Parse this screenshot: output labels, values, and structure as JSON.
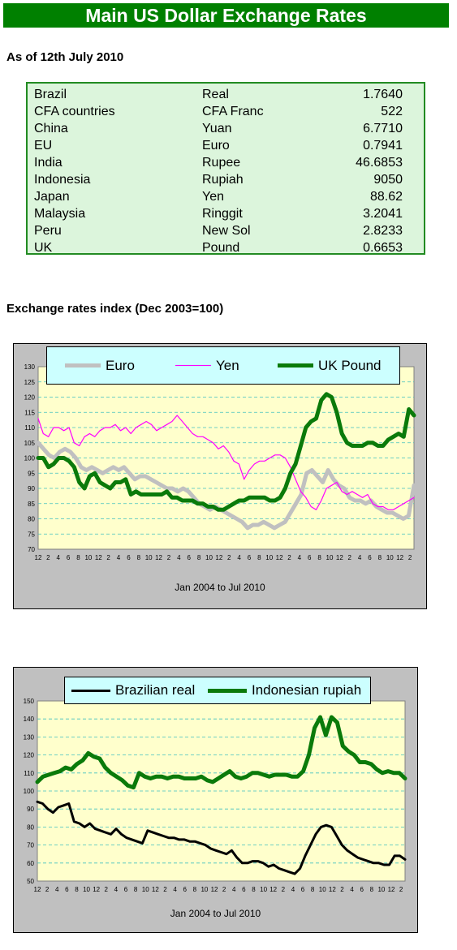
{
  "header": {
    "title": "Main US Dollar Exchange Rates",
    "as_of": "As of 12th July 2010",
    "index_heading": "Exchange rates index (Dec 2003=100)"
  },
  "rates_table": [
    {
      "country": "Brazil",
      "currency": "Real",
      "value": "1.7640"
    },
    {
      "country": "CFA countries",
      "currency": "CFA Franc",
      "value": "522"
    },
    {
      "country": "China",
      "currency": "Yuan",
      "value": "6.7710"
    },
    {
      "country": "EU",
      "currency": "Euro",
      "value": "0.7941"
    },
    {
      "country": "India",
      "currency": "Rupee",
      "value": "46.6853"
    },
    {
      "country": "Indonesia",
      "currency": "Rupiah",
      "value": "9050"
    },
    {
      "country": "Japan",
      "currency": "Yen",
      "value": "88.62"
    },
    {
      "country": "Malaysia",
      "currency": "Ringgit",
      "value": "3.2041"
    },
    {
      "country": "Peru",
      "currency": "New Sol",
      "value": "2.8233"
    },
    {
      "country": "UK",
      "currency": "Pound",
      "value": "0.6653"
    }
  ],
  "colors": {
    "banner": "#008000",
    "table_bg": "#dcf5dc",
    "plot_bg": "#ffffcc",
    "legend_bg": "#ccffff",
    "euro": "#c0c0c0",
    "yen": "#ff00ff",
    "pound": "#0a7a0a",
    "real": "#000000",
    "rupiah": "#0a7a0a"
  },
  "chart_data": [
    {
      "type": "line",
      "xlabel": "Jan 2004 to Jul 2010",
      "x_ticks": [
        "12",
        "2",
        "4",
        "6",
        "8",
        "10",
        "12",
        "2",
        "4",
        "6",
        "8",
        "10",
        "12",
        "2",
        "4",
        "6",
        "8",
        "10",
        "12",
        "2",
        "4",
        "6",
        "8",
        "10",
        "12",
        "2",
        "4",
        "6",
        "8",
        "10",
        "12",
        "2",
        "4",
        "6",
        "8",
        "10",
        "12",
        "2"
      ],
      "ylim": [
        70,
        130
      ],
      "y_ticks": [
        70,
        75,
        80,
        85,
        90,
        95,
        100,
        105,
        110,
        115,
        120,
        125,
        130
      ],
      "grid": true,
      "legend": "top",
      "series": [
        {
          "name": "Euro",
          "color": "#c0c0c0",
          "width": 5,
          "values": [
            105,
            103,
            101,
            100,
            102,
            103,
            102,
            100,
            97,
            96,
            97,
            96,
            95,
            96,
            97,
            96,
            97,
            95,
            93,
            94,
            94,
            93,
            92,
            91,
            90,
            90,
            89,
            90,
            89,
            87,
            85,
            84,
            83,
            84,
            83,
            82,
            81,
            80,
            79,
            77,
            78,
            78,
            79,
            78,
            77,
            78,
            79,
            82,
            85,
            88,
            95,
            96,
            94,
            92,
            96,
            93,
            91,
            90,
            87,
            86,
            86,
            85,
            86,
            84,
            83,
            82,
            82,
            81,
            80,
            81,
            91
          ]
        },
        {
          "name": "Yen",
          "color": "#ff00ff",
          "width": 1.2,
          "values": [
            113,
            108,
            107,
            110,
            110,
            109,
            110,
            105,
            104,
            107,
            108,
            107,
            109,
            110,
            110,
            111,
            109,
            110,
            108,
            110,
            111,
            112,
            111,
            109,
            110,
            111,
            112,
            114,
            112,
            110,
            108,
            107,
            107,
            106,
            105,
            103,
            104,
            102,
            99,
            98,
            93,
            96,
            98,
            99,
            99,
            100,
            101,
            101,
            100,
            97,
            93,
            89,
            87,
            84,
            83,
            86,
            90,
            91,
            92,
            89,
            88,
            89,
            88,
            87,
            88,
            85,
            84,
            84,
            83,
            83,
            84,
            85,
            86,
            87
          ]
        },
        {
          "name": "UK Pound",
          "color": "#0a7a0a",
          "width": 5,
          "values": [
            100,
            100,
            97,
            98,
            100,
            100,
            99,
            97,
            92,
            90,
            94,
            95,
            92,
            91,
            90,
            92,
            92,
            93,
            88,
            89,
            88,
            88,
            88,
            88,
            88,
            89,
            87,
            87,
            86,
            86,
            86,
            85,
            85,
            84,
            84,
            83,
            83,
            84,
            85,
            86,
            86,
            87,
            87,
            87,
            87,
            86,
            86,
            87,
            90,
            95,
            98,
            104,
            110,
            112,
            113,
            119,
            121,
            120,
            115,
            108,
            105,
            104,
            104,
            104,
            105,
            105,
            104,
            104,
            106,
            107,
            108,
            107,
            116,
            114
          ]
        }
      ]
    },
    {
      "type": "line",
      "xlabel": "Jan 2004 to Jul 2010",
      "x_ticks": [
        "12",
        "2",
        "4",
        "6",
        "8",
        "10",
        "12",
        "2",
        "4",
        "6",
        "8",
        "10",
        "12",
        "2",
        "4",
        "6",
        "8",
        "10",
        "12",
        "2",
        "4",
        "6",
        "8",
        "10",
        "12",
        "2",
        "4",
        "6",
        "8",
        "10",
        "12",
        "2",
        "4",
        "6",
        "8",
        "10",
        "12",
        "2"
      ],
      "ylim": [
        50,
        150
      ],
      "y_ticks": [
        50,
        60,
        70,
        80,
        90,
        100,
        110,
        120,
        130,
        140,
        150
      ],
      "grid": true,
      "legend": "top",
      "series": [
        {
          "name": "Brazilian real",
          "color": "#000000",
          "width": 3,
          "values": [
            94,
            93,
            90,
            88,
            91,
            92,
            93,
            83,
            82,
            80,
            82,
            79,
            78,
            77,
            76,
            79,
            76,
            74,
            73,
            72,
            71,
            78,
            77,
            76,
            75,
            74,
            74,
            73,
            73,
            72,
            72,
            71,
            70,
            68,
            67,
            66,
            65,
            67,
            63,
            60,
            60,
            61,
            61,
            60,
            58,
            59,
            57,
            56,
            55,
            54,
            57,
            64,
            70,
            76,
            80,
            81,
            80,
            75,
            70,
            67,
            65,
            63,
            62,
            61,
            60,
            60,
            59,
            59,
            64,
            64,
            62
          ]
        },
        {
          "name": "Indonesian rupiah",
          "color": "#0a7a0a",
          "width": 5,
          "values": [
            105,
            108,
            109,
            110,
            111,
            113,
            112,
            115,
            117,
            121,
            119,
            118,
            113,
            110,
            108,
            106,
            103,
            102,
            110,
            108,
            107,
            108,
            108,
            107,
            108,
            108,
            107,
            107,
            107,
            108,
            106,
            105,
            107,
            109,
            111,
            108,
            107,
            108,
            110,
            110,
            109,
            108,
            109,
            109,
            109,
            108,
            108,
            111,
            120,
            135,
            141,
            131,
            141,
            138,
            125,
            122,
            120,
            116,
            116,
            115,
            112,
            110,
            111,
            110,
            110,
            107
          ]
        }
      ]
    }
  ]
}
